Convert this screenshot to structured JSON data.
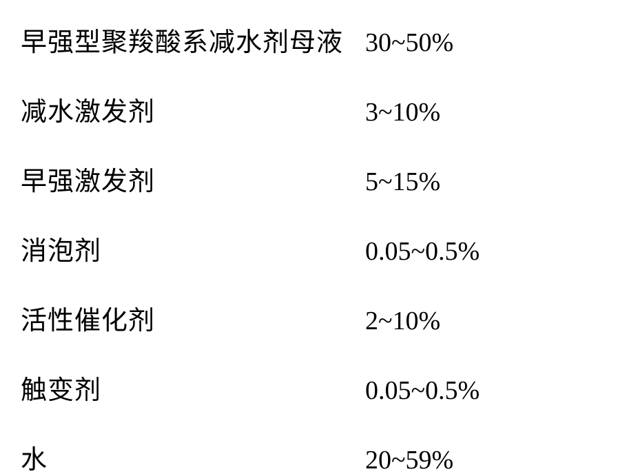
{
  "composition_table": {
    "type": "table",
    "background_color": "#ffffff",
    "text_color": "#000000",
    "label_fontsize": 38,
    "value_fontsize": 38,
    "label_fontfamily": "SimSun",
    "value_fontfamily": "Times New Roman",
    "row_gap": 46,
    "label_width": 500,
    "rows": [
      {
        "label": "早强型聚羧酸系减水剂母液",
        "value": "30~50%"
      },
      {
        "label": "减水激发剂",
        "value": "3~10%"
      },
      {
        "label": "早强激发剂",
        "value": "5~15%"
      },
      {
        "label": "消泡剂",
        "value": "0.05~0.5%"
      },
      {
        "label": "活性催化剂",
        "value": "2~10%"
      },
      {
        "label": "触变剂",
        "value": "0.05~0.5%"
      },
      {
        "label": "水",
        "value": "20~59%"
      }
    ]
  }
}
